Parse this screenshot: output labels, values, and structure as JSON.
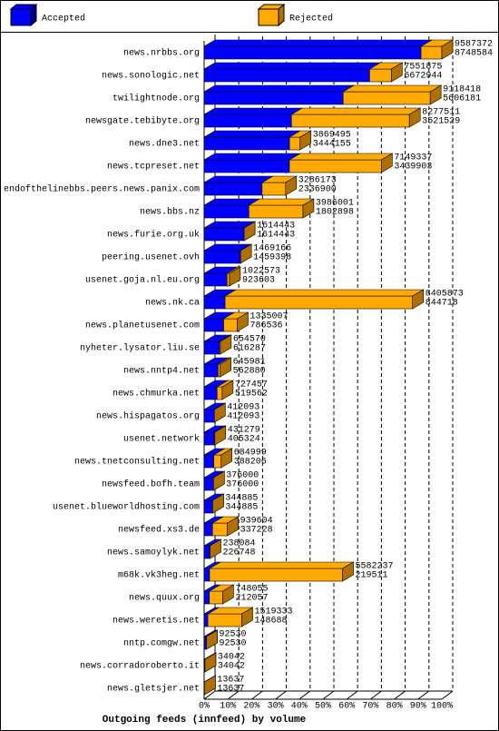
{
  "chart_data": {
    "type": "bar3d",
    "orientation": "horizontal",
    "stacked": true,
    "title": "Outgoing feeds (innfeed) by volume",
    "categories": [
      "news.nrbbs.org",
      "news.sonologic.net",
      "twilightnode.org",
      "newsgate.tebibyte.org",
      "news.dne3.net",
      "news.tcpreset.net",
      "endofthelinebbs.peers.news.panix.com",
      "news.bbs.nz",
      "news.furie.org.uk",
      "peering.usenet.ovh",
      "usenet.goja.nl.eu.org",
      "news.nk.ca",
      "news.planetusenet.com",
      "nyheter.lysator.liu.se",
      "news.nntp4.net",
      "news.chmurka.net",
      "news.hispagatos.org",
      "usenet.network",
      "news.tnetconsulting.net",
      "newsfeed.bofh.team",
      "usenet.blueworldhosting.com",
      "newsfeed.xs3.de",
      "news.samoylyk.net",
      "m68k.vk3heg.net",
      "news.quux.org",
      "news.weretis.net",
      "nntp.comgw.net",
      "news.corradoroberto.it",
      "news.gletsjer.net"
    ],
    "totals": [
      9587372,
      7551875,
      9118418,
      8277511,
      3869495,
      7149337,
      3286173,
      3986001,
      1614443,
      1469166,
      1022573,
      8405873,
      1335007,
      654570,
      645981,
      727457,
      412093,
      431279,
      684999,
      376000,
      344885,
      939604,
      238084,
      5582237,
      748055,
      1519333,
      92530,
      34042,
      13637
    ],
    "series": [
      {
        "name": "Accepted",
        "color": "#0000ff",
        "values": [
          8748584,
          6672944,
          5606181,
          3521529,
          3444155,
          3439903,
          2336900,
          1802898,
          1614443,
          1459398,
          923603,
          844718,
          786536,
          616287,
          562880,
          519562,
          412093,
          405324,
          388206,
          376000,
          344885,
          337228,
          226748,
          219511,
          212057,
          148688,
          92530,
          34042,
          13637
        ]
      },
      {
        "name": "Rejected",
        "color": "#ffaa00",
        "values": [
          838788,
          878931,
          3512237,
          4755982,
          425340,
          3709434,
          949273,
          2183103,
          0,
          9768,
          98970,
          7561155,
          548471,
          38283,
          83101,
          207895,
          0,
          25955,
          296793,
          0,
          0,
          602376,
          11336,
          5362726,
          535998,
          1370645,
          0,
          0,
          0
        ]
      }
    ],
    "xlim": [
      0,
      9587372
    ],
    "xticks": [
      {
        "value": 0,
        "label": "0%"
      },
      {
        "value": 958737.2,
        "label": "10%"
      },
      {
        "value": 1917474.4,
        "label": "20%"
      },
      {
        "value": 2876211.6,
        "label": "30%"
      },
      {
        "value": 3834948.8,
        "label": "40%"
      },
      {
        "value": 4793686,
        "label": "50%"
      },
      {
        "value": 5752423.2,
        "label": "60%"
      },
      {
        "value": 6711160.4,
        "label": "70%"
      },
      {
        "value": 7669897.6,
        "label": "80%"
      },
      {
        "value": 8628634.8,
        "label": "90%"
      },
      {
        "value": 9587372,
        "label": "100%"
      }
    ],
    "grid": true
  }
}
